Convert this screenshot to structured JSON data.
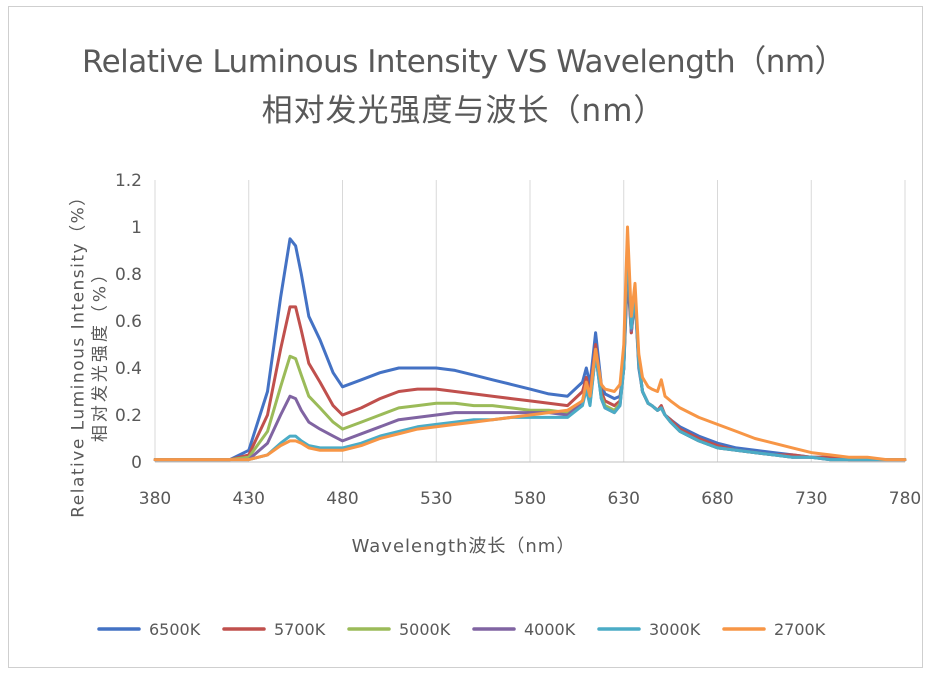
{
  "chart_data": {
    "type": "line",
    "title": "Relative Luminous Intensity VS Wavelength（nm）",
    "subtitle": "相对发光强度与波长（nm）",
    "xlabel": "Wavelength波长（nm）",
    "ylabel_en": "Relative Luminous Intensity（%）",
    "ylabel_cn": "相对发光强度（%）",
    "xlim": [
      380,
      780
    ],
    "ylim": [
      0,
      1.2
    ],
    "x_ticks": [
      "380",
      "430",
      "480",
      "530",
      "580",
      "630",
      "680",
      "730",
      "780"
    ],
    "y_ticks": [
      "0",
      "0.2",
      "0.4",
      "0.6",
      "0.8",
      "1",
      "1.2"
    ],
    "grid": "vertical",
    "legend_position": "bottom",
    "x": [
      380,
      420,
      430,
      440,
      447,
      452,
      455,
      458,
      462,
      468,
      475,
      480,
      490,
      500,
      510,
      520,
      530,
      540,
      550,
      560,
      570,
      580,
      590,
      600,
      608,
      610,
      612,
      615,
      618,
      620,
      625,
      628,
      630,
      632,
      634,
      636,
      638,
      640,
      643,
      645,
      648,
      650,
      652,
      655,
      660,
      670,
      680,
      690,
      700,
      710,
      720,
      730,
      740,
      750,
      760,
      770,
      780
    ],
    "series": [
      {
        "name": "6500K",
        "color": "#4472C4",
        "values": [
          0.01,
          0.01,
          0.05,
          0.3,
          0.7,
          0.95,
          0.92,
          0.8,
          0.62,
          0.52,
          0.38,
          0.32,
          0.35,
          0.38,
          0.4,
          0.4,
          0.4,
          0.39,
          0.37,
          0.35,
          0.33,
          0.31,
          0.29,
          0.28,
          0.34,
          0.4,
          0.33,
          0.55,
          0.33,
          0.29,
          0.27,
          0.28,
          0.4,
          0.8,
          0.55,
          0.7,
          0.4,
          0.3,
          0.25,
          0.24,
          0.22,
          0.23,
          0.2,
          0.18,
          0.15,
          0.11,
          0.08,
          0.06,
          0.05,
          0.04,
          0.03,
          0.02,
          0.02,
          0.01,
          0.01,
          0.01,
          0.01
        ]
      },
      {
        "name": "5700K",
        "color": "#C0504D",
        "values": [
          0.01,
          0.01,
          0.03,
          0.2,
          0.48,
          0.66,
          0.66,
          0.56,
          0.42,
          0.34,
          0.24,
          0.2,
          0.23,
          0.27,
          0.3,
          0.31,
          0.31,
          0.3,
          0.29,
          0.28,
          0.27,
          0.26,
          0.25,
          0.24,
          0.3,
          0.36,
          0.29,
          0.5,
          0.3,
          0.26,
          0.24,
          0.26,
          0.4,
          0.85,
          0.55,
          0.72,
          0.42,
          0.3,
          0.25,
          0.24,
          0.22,
          0.24,
          0.2,
          0.18,
          0.14,
          0.1,
          0.07,
          0.05,
          0.04,
          0.03,
          0.03,
          0.02,
          0.02,
          0.01,
          0.01,
          0.01,
          0.01
        ]
      },
      {
        "name": "5000K",
        "color": "#9BBB59",
        "values": [
          0.01,
          0.01,
          0.02,
          0.13,
          0.32,
          0.45,
          0.44,
          0.37,
          0.28,
          0.23,
          0.17,
          0.14,
          0.17,
          0.2,
          0.23,
          0.24,
          0.25,
          0.25,
          0.24,
          0.24,
          0.23,
          0.22,
          0.22,
          0.21,
          0.26,
          0.33,
          0.26,
          0.47,
          0.28,
          0.24,
          0.22,
          0.25,
          0.4,
          0.9,
          0.56,
          0.72,
          0.42,
          0.3,
          0.25,
          0.24,
          0.22,
          0.23,
          0.2,
          0.17,
          0.13,
          0.09,
          0.06,
          0.05,
          0.04,
          0.03,
          0.02,
          0.02,
          0.01,
          0.01,
          0.01,
          0.01,
          0.01
        ]
      },
      {
        "name": "4000K",
        "color": "#8064A2",
        "values": [
          0.01,
          0.01,
          0.01,
          0.08,
          0.2,
          0.28,
          0.27,
          0.22,
          0.17,
          0.14,
          0.11,
          0.09,
          0.12,
          0.15,
          0.18,
          0.19,
          0.2,
          0.21,
          0.21,
          0.21,
          0.21,
          0.21,
          0.21,
          0.2,
          0.25,
          0.32,
          0.25,
          0.46,
          0.27,
          0.23,
          0.21,
          0.24,
          0.4,
          0.92,
          0.56,
          0.72,
          0.42,
          0.3,
          0.25,
          0.24,
          0.22,
          0.23,
          0.2,
          0.17,
          0.13,
          0.09,
          0.06,
          0.05,
          0.04,
          0.03,
          0.02,
          0.02,
          0.01,
          0.01,
          0.01,
          0.01,
          0.01
        ]
      },
      {
        "name": "3000K",
        "color": "#4BACC6",
        "values": [
          0.01,
          0.01,
          0.01,
          0.03,
          0.08,
          0.11,
          0.11,
          0.09,
          0.07,
          0.06,
          0.06,
          0.06,
          0.08,
          0.11,
          0.13,
          0.15,
          0.16,
          0.17,
          0.18,
          0.18,
          0.19,
          0.19,
          0.19,
          0.19,
          0.24,
          0.31,
          0.24,
          0.46,
          0.27,
          0.23,
          0.21,
          0.24,
          0.4,
          0.95,
          0.57,
          0.72,
          0.42,
          0.3,
          0.25,
          0.24,
          0.22,
          0.23,
          0.2,
          0.17,
          0.13,
          0.09,
          0.06,
          0.05,
          0.04,
          0.03,
          0.02,
          0.02,
          0.01,
          0.01,
          0.01,
          0.01,
          0.01
        ]
      },
      {
        "name": "2700K",
        "color": "#F79646",
        "values": [
          0.01,
          0.01,
          0.01,
          0.03,
          0.07,
          0.09,
          0.09,
          0.08,
          0.06,
          0.05,
          0.05,
          0.05,
          0.07,
          0.1,
          0.12,
          0.14,
          0.15,
          0.16,
          0.17,
          0.18,
          0.19,
          0.2,
          0.21,
          0.22,
          0.26,
          0.34,
          0.28,
          0.48,
          0.33,
          0.31,
          0.3,
          0.33,
          0.5,
          1.0,
          0.62,
          0.76,
          0.46,
          0.36,
          0.32,
          0.31,
          0.3,
          0.35,
          0.28,
          0.26,
          0.23,
          0.19,
          0.16,
          0.13,
          0.1,
          0.08,
          0.06,
          0.04,
          0.03,
          0.02,
          0.02,
          0.01,
          0.01
        ]
      }
    ]
  }
}
